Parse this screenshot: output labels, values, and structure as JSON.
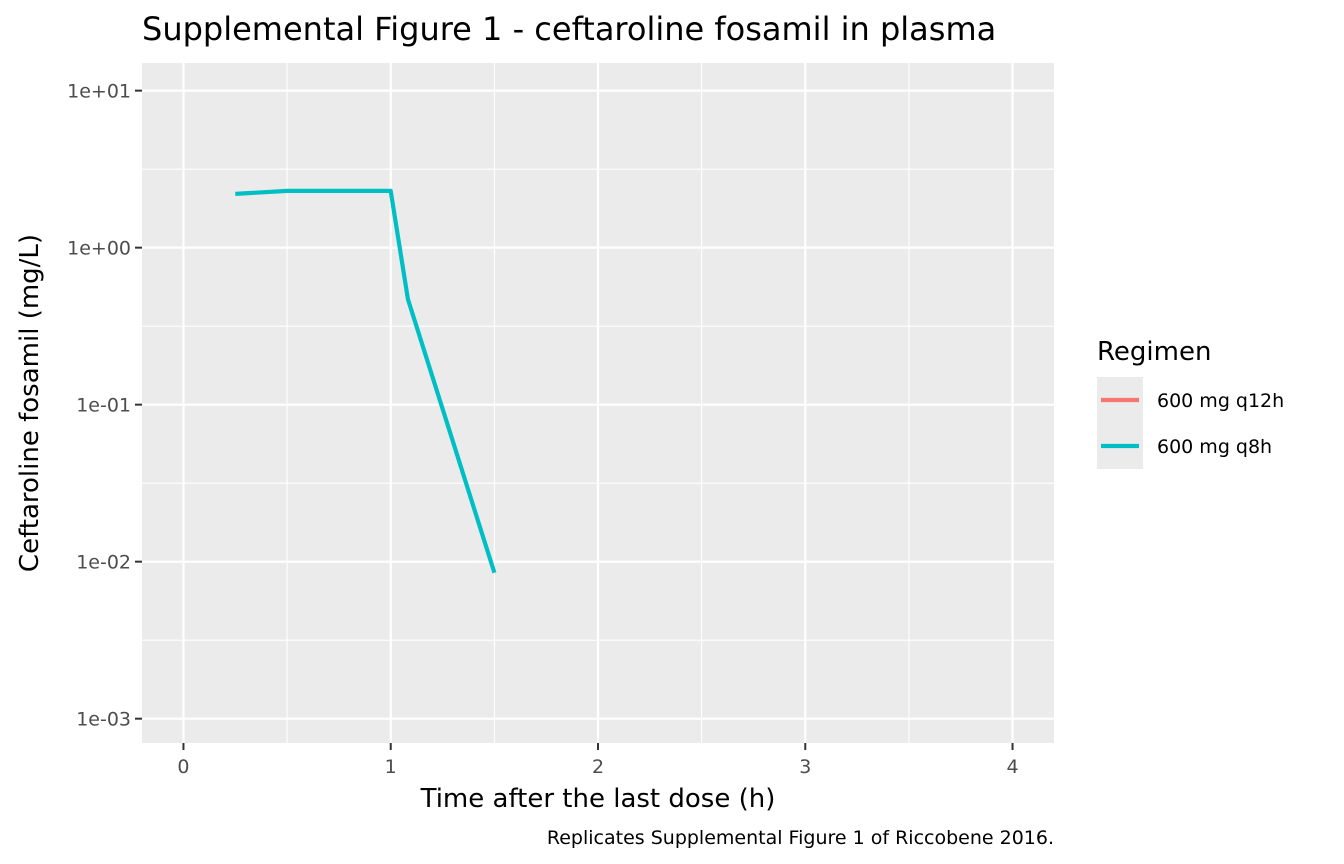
{
  "chart_data": {
    "type": "line",
    "title": "Supplemental Figure 1 - ceftaroline fosamil in plasma",
    "xlabel": "Time after the last dose (h)",
    "ylabel": "Ceftaroline fosamil (mg/L)",
    "caption": "Replicates Supplemental Figure 1 of Riccobene 2016.",
    "y_scale": "log10",
    "xlim": [
      -0.2,
      4.2
    ],
    "ylim": [
      0.0007,
      15
    ],
    "x_ticks": [
      0,
      1,
      2,
      3,
      4
    ],
    "x_tick_labels": [
      "0",
      "1",
      "2",
      "3",
      "4"
    ],
    "y_ticks": [
      0.001,
      0.01,
      0.1,
      1,
      10
    ],
    "y_tick_labels": [
      "1e-03",
      "1e-02",
      "1e-01",
      "1e+00",
      "1e+01"
    ],
    "grid": true,
    "legend": {
      "title": "Regimen",
      "position": "right",
      "entries": [
        "600 mg q12h",
        "600 mg q8h"
      ]
    },
    "series": [
      {
        "name": "600 mg q12h",
        "color": "#F8766D",
        "x": [],
        "y": []
      },
      {
        "name": "600 mg q8h",
        "color": "#00BFC4",
        "x": [
          0.25,
          0.5,
          0.75,
          1.0,
          1.083,
          1.5
        ],
        "y": [
          2.2,
          2.3,
          2.3,
          2.3,
          0.47,
          0.0085
        ]
      }
    ]
  }
}
